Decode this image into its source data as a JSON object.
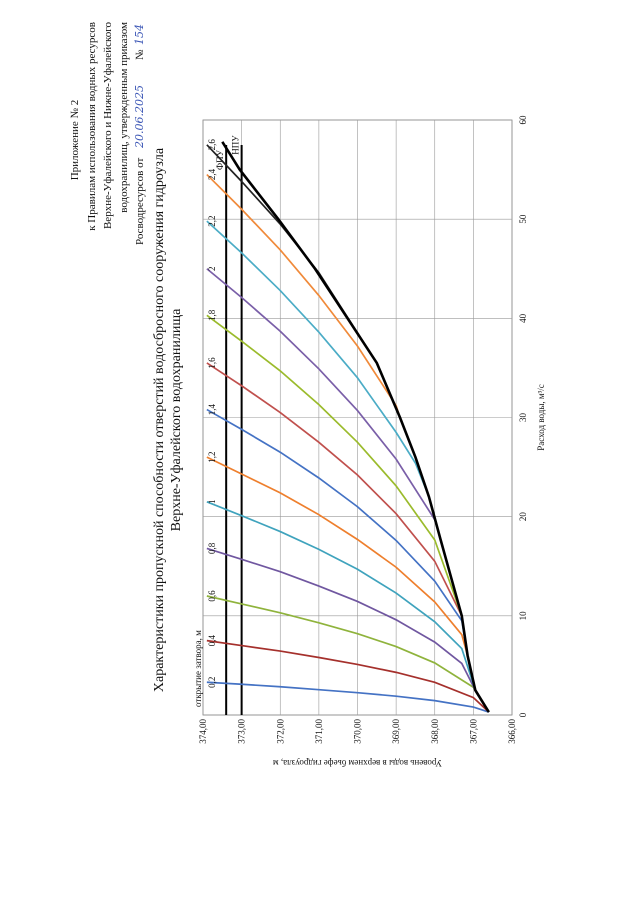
{
  "header": {
    "lines": [
      "Приложение № 2",
      "к Правилам использования водных ресурсов",
      "Верхне-Уфалейского и Нижне-Уфалейского",
      "водохранилищ,   утвержденным   приказом",
      "Росводресурсов от"
    ],
    "date": "20.06.2025",
    "number_label": "№",
    "number": "154"
  },
  "chart_data": {
    "type": "line",
    "title": "Характеристики пропускной способности отверстий водосбросного сооружения гидроузла",
    "subtitle": "Верхне-Уфалейского водохранилища",
    "x_label": "Расход воды, м³/с",
    "y_label": "Уровень воды в верхнем бьефе гидроузла, м",
    "legend_title": "открытие затвора, м",
    "xlim": [
      0,
      60
    ],
    "xticks": [
      0,
      10,
      20,
      30,
      40,
      50,
      60
    ],
    "ylim": [
      366,
      374
    ],
    "yticks": [
      {
        "value": 366,
        "label": "366,00"
      },
      {
        "value": 367,
        "label": "367,00"
      },
      {
        "value": 368,
        "label": "368,00"
      },
      {
        "value": 369,
        "label": "369,00"
      },
      {
        "value": 370,
        "label": "370,00"
      },
      {
        "value": 371,
        "label": "371,00"
      },
      {
        "value": 372,
        "label": "372,00"
      },
      {
        "value": 373,
        "label": "373,00"
      },
      {
        "value": 374,
        "label": "374,00"
      }
    ],
    "grid": true,
    "series": [
      {
        "name": "0,2",
        "color": "#4472c4",
        "x": [
          0.3,
          0.8,
          1.45,
          1.9,
          2.25,
          2.55,
          2.85,
          3.1,
          3.3
        ],
        "values": [
          366.6,
          367,
          368,
          369,
          370,
          371,
          372,
          373,
          373.9
        ]
      },
      {
        "name": "0,4",
        "color": "#a5302c",
        "x": [
          0.3,
          1.75,
          3.3,
          4.3,
          5.1,
          5.8,
          6.45,
          7.0,
          7.5
        ],
        "values": [
          366.6,
          367,
          368,
          369,
          370,
          371,
          372,
          373,
          373.9
        ]
      },
      {
        "name": "0,6",
        "color": "#8fb33c",
        "x": [
          0.3,
          2.8,
          5.25,
          6.9,
          8.2,
          9.3,
          10.3,
          11.2,
          12
        ],
        "values": [
          366.6,
          367,
          368,
          369,
          370,
          371,
          372,
          373,
          373.9
        ]
      },
      {
        "name": "0,8",
        "color": "#7057a0",
        "x": [
          0.3,
          2.5,
          5.2,
          7.35,
          9.6,
          11.45,
          13.0,
          14.45,
          15.7,
          16.8
        ],
        "values": [
          366.6,
          366.95,
          367.3,
          368,
          369,
          370,
          371,
          372,
          373,
          373.9
        ]
      },
      {
        "name": "1",
        "color": "#3fa3bd",
        "x": [
          0.3,
          2.5,
          6.7,
          9.4,
          12.3,
          14.7,
          16.7,
          18.5,
          20.1,
          21.5
        ],
        "values": [
          366.6,
          366.95,
          367.3,
          368,
          369,
          370,
          371,
          372,
          373,
          373.9
        ]
      },
      {
        "name": "1,2",
        "color": "#ee7f2d",
        "x": [
          0.3,
          2.5,
          6,
          8.1,
          11.4,
          14.9,
          17.7,
          20.2,
          22.4,
          24.3,
          26
        ],
        "values": [
          366.6,
          366.95,
          367.15,
          367.3,
          368,
          369,
          370,
          371,
          372,
          373,
          373.9
        ]
      },
      {
        "name": "1,4",
        "color": "#4472c4",
        "x": [
          0.3,
          2.5,
          6,
          9.5,
          13.5,
          17.6,
          21,
          23.9,
          26.5,
          28.8,
          30.8
        ],
        "values": [
          366.6,
          366.95,
          367.15,
          367.3,
          368,
          369,
          370,
          371,
          372,
          373,
          373.9
        ]
      },
      {
        "name": "1,6",
        "color": "#c0504d",
        "x": [
          0.3,
          2.5,
          6,
          10,
          15.5,
          20.3,
          24.2,
          27.5,
          30.5,
          33.2,
          35.5
        ],
        "values": [
          366.6,
          366.95,
          367.15,
          367.3,
          368,
          369,
          370,
          371,
          372,
          373,
          373.9
        ]
      },
      {
        "name": "1,8",
        "color": "#9bbb2c",
        "x": [
          0.3,
          2.5,
          6,
          10,
          17.65,
          23.1,
          27.5,
          31.3,
          34.7,
          37.7,
          40.3
        ],
        "values": [
          366.6,
          366.95,
          367.15,
          367.3,
          368,
          369,
          370,
          371,
          372,
          373,
          373.9
        ]
      },
      {
        "name": "2",
        "color": "#7a5fa8",
        "x": [
          0.3,
          2.5,
          6,
          10,
          17.7,
          19.7,
          25.8,
          30.7,
          34.9,
          38.7,
          42.1,
          45
        ],
        "values": [
          366.6,
          366.95,
          367.15,
          367.3,
          367.85,
          368,
          369,
          370,
          371,
          372,
          373,
          373.9
        ]
      },
      {
        "name": "2,2",
        "color": "#4bacc6",
        "x": [
          0.3,
          2.5,
          6,
          10,
          17.7,
          22,
          25.4,
          28.5,
          34,
          38.6,
          42.8,
          46.6,
          49.8
        ],
        "values": [
          366.6,
          366.95,
          367.15,
          367.3,
          367.85,
          368.15,
          368.5,
          369,
          370,
          371,
          372,
          373,
          373.9
        ]
      },
      {
        "name": "2,4",
        "color": "#f08a3a",
        "x": [
          0.3,
          2.5,
          6,
          10,
          17.7,
          22,
          26,
          30,
          31.2,
          37.2,
          42.3,
          46.9,
          51.0,
          54.5
        ],
        "values": [
          366.6,
          366.95,
          367.15,
          367.3,
          367.85,
          368.15,
          368.5,
          368.9,
          369,
          370,
          371,
          372,
          373,
          373.9
        ]
      },
      {
        "name": "2,6",
        "color": "#222222",
        "x": [
          0.3,
          2.5,
          6,
          10,
          17.7,
          22,
          26,
          30,
          35.5,
          44.6,
          49.5,
          53.8,
          57.5
        ],
        "values": [
          366.6,
          366.95,
          367.15,
          367.3,
          367.85,
          368.15,
          368.5,
          368.9,
          369.5,
          371,
          372,
          373,
          373.9
        ]
      },
      {
        "color": "#000000",
        "x": [
          0.3,
          2.5,
          6,
          10,
          17.7,
          22,
          26,
          30,
          35.5,
          45,
          50,
          55,
          57.8
        ],
        "values": [
          366.6,
          366.95,
          367.15,
          367.3,
          367.85,
          368.15,
          368.5,
          368.9,
          369.5,
          371.1,
          372.05,
          373.05,
          373.5
        ]
      }
    ],
    "reference_lines": [
      {
        "label": "ФПУ",
        "value": 373.4
      },
      {
        "label": "НПУ",
        "value": 373.0
      }
    ]
  }
}
